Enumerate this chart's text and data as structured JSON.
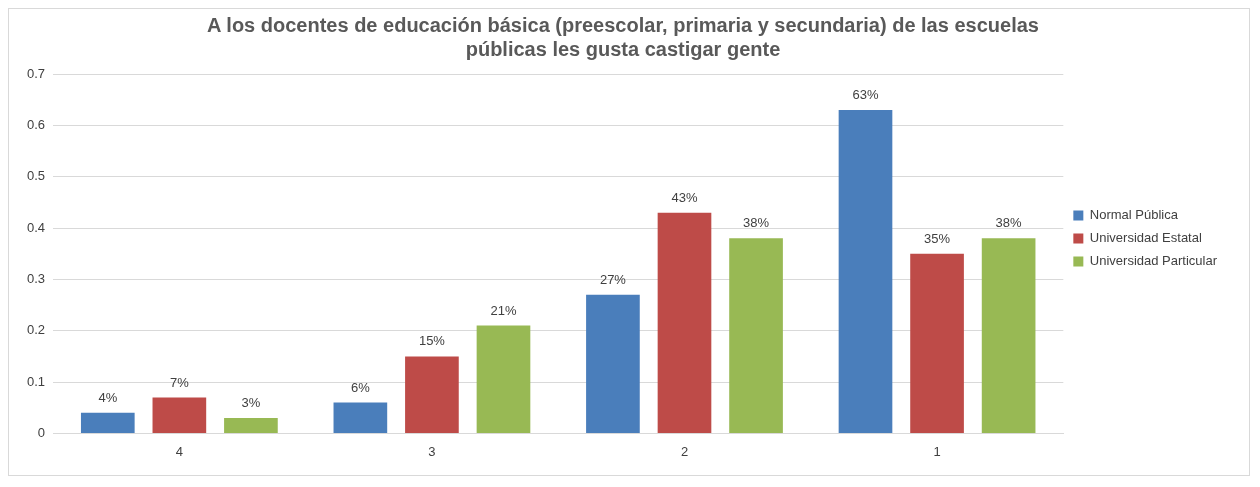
{
  "chart_data": {
    "type": "bar",
    "title": "A los docentes de educación básica (preescolar, primaria y secundaria) de las escuelas públicas les gusta castigar gente",
    "categories": [
      "4",
      "3",
      "2",
      "1"
    ],
    "series": [
      {
        "name": "Normal Pública",
        "color": "#4a7ebb",
        "values": [
          0.04,
          0.06,
          0.27,
          0.63
        ],
        "value_labels": [
          "4%",
          "6%",
          "27%",
          "63%"
        ]
      },
      {
        "name": "Universidad Estatal",
        "color": "#be4b48",
        "values": [
          0.07,
          0.15,
          0.43,
          0.35
        ],
        "value_labels": [
          "7%",
          "15%",
          "43%",
          "35%"
        ]
      },
      {
        "name": "Universidad Particular",
        "color": "#98b954",
        "values": [
          0.03,
          0.21,
          0.38,
          0.38
        ],
        "value_labels": [
          "3%",
          "21%",
          "38%",
          "38%"
        ]
      }
    ],
    "ylim": [
      0,
      0.7
    ],
    "yticks": [
      0,
      0.1,
      0.2,
      0.3,
      0.4,
      0.5,
      0.6,
      0.7
    ],
    "grid": "y",
    "legend": "right"
  }
}
